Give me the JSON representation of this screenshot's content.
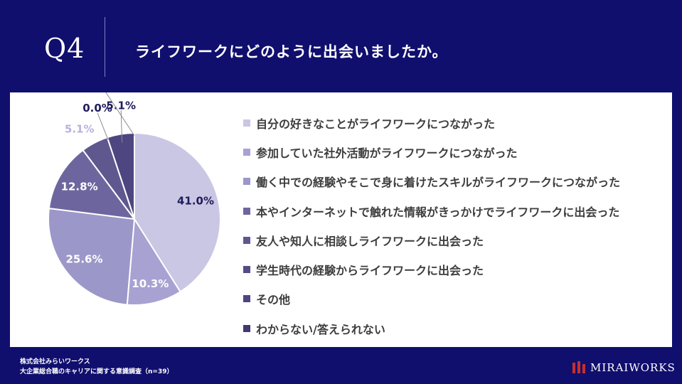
{
  "header": {
    "question_number": "Q4",
    "question": "ライフワークにどのように出会いましたか。"
  },
  "chart_data": {
    "type": "pie",
    "title": "ライフワークにどのように出会いましたか。",
    "categories": [
      "自分の好きなことがライフワークにつながった",
      "参加していた社外活動がライフワークにつながった",
      "働く中での経験やそこで身に着けたスキルがライフワークにつながった",
      "本やインターネットで触れた情報がきっかけでライフワークに出会った",
      "友人や知人に相談しライフワークに出会った",
      "学生時代の経験からライフワークに出会った",
      "その他",
      "わからない/答えられない"
    ],
    "values": [
      41.0,
      10.3,
      25.6,
      12.8,
      5.1,
      0.0,
      5.1,
      0.0
    ],
    "value_labels": [
      "41.0%",
      "10.3%",
      "25.6%",
      "12.8%",
      "5.1%",
      "0.0%",
      "5.1%",
      "0.0%"
    ],
    "colors": [
      "#c9c7e3",
      "#a7a2d2",
      "#9b97c8",
      "#6d669e",
      "#5f588f",
      "#544c85",
      "#4d4680",
      "#403972"
    ],
    "legend_position": "right"
  },
  "footer": {
    "company": "株式会社みらいワークス",
    "survey": "大企業総合職のキャリアに関する意識調査（n=39）",
    "logo_text": "MIRAIWORKS"
  }
}
